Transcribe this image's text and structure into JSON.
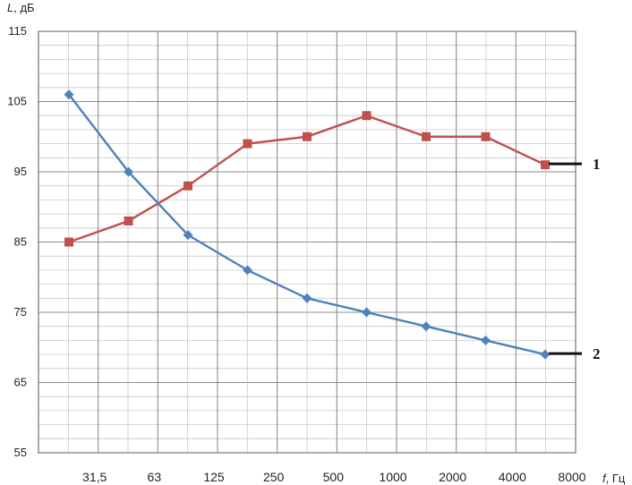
{
  "chart_data": {
    "type": "line",
    "xlabel_var": "f",
    "xlabel_unit": ", Гц",
    "ylabel_var": "L",
    "ylabel_unit": ", дБ",
    "ylim": [
      55,
      115
    ],
    "y_ticks": [
      "115",
      "105",
      "95",
      "85",
      "75",
      "65",
      "55"
    ],
    "x_tick_labels": [
      "31,5",
      "63",
      "125",
      "250",
      "500",
      "1000",
      "2000",
      "4000",
      "8000"
    ],
    "grid": true,
    "series": [
      {
        "name": "1",
        "color": "#c0504d",
        "marker": "square",
        "x": [
          0,
          1,
          2,
          3,
          4,
          5,
          6,
          7,
          8
        ],
        "values": [
          85,
          88,
          93,
          99,
          100,
          103,
          100,
          100,
          96
        ]
      },
      {
        "name": "2",
        "color": "#4f81bd",
        "marker": "diamond",
        "x": [
          0,
          1,
          2,
          3,
          4,
          5,
          6,
          7,
          8
        ],
        "values": [
          106,
          95,
          86,
          81,
          77,
          75,
          73,
          71,
          69
        ]
      }
    ]
  }
}
